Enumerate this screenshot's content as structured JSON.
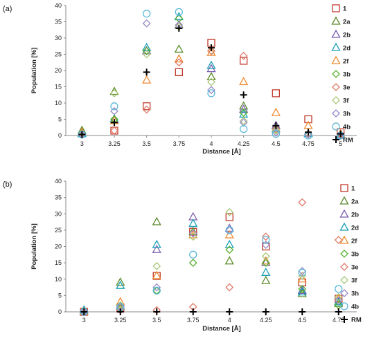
{
  "chart_data": [
    {
      "type": "scatter",
      "panel_label": "(a)",
      "title": "",
      "xlabel": "Distance [Å]",
      "ylabel": "Population [%]",
      "categories": [
        "3",
        "3.25",
        "3.5",
        "3.75",
        "4",
        "4.25",
        "4.5",
        "4.75",
        "5"
      ],
      "ylim": [
        0,
        40
      ],
      "yticks": [
        "0",
        "5",
        "10",
        "15",
        "20",
        "25",
        "30",
        "35",
        "40"
      ],
      "grid": false,
      "legend_position": "right",
      "series": [
        {
          "name": "1",
          "marker": "square",
          "color": "#c0392b",
          "values": [
            null,
            1.5,
            9,
            19.5,
            28.5,
            23,
            13,
            5,
            1
          ]
        },
        {
          "name": "2a",
          "marker": "triangle",
          "color": "#5a8a2a",
          "values": [
            1.5,
            13.5,
            26,
            26.5,
            18,
            9,
            3,
            0.5,
            0
          ]
        },
        {
          "name": "2b",
          "marker": "triangle",
          "color": "#7a5fb0",
          "values": [
            0.5,
            5,
            26,
            34,
            20.5,
            8,
            3,
            0.5,
            0
          ]
        },
        {
          "name": "2d",
          "marker": "triangle",
          "color": "#1a9fb5",
          "values": [
            0.5,
            5,
            27,
            36.5,
            21.5,
            6.5,
            2,
            0.5,
            0
          ]
        },
        {
          "name": "2f",
          "marker": "triangle",
          "color": "#f08a30",
          "values": [
            1,
            4.5,
            17,
            23.5,
            25.5,
            16.5,
            7,
            3,
            0.5
          ]
        },
        {
          "name": "3b",
          "marker": "diamond",
          "color": "#55b02a",
          "values": [
            0.5,
            5,
            26,
            36,
            26,
            7,
            2,
            0.5,
            0
          ]
        },
        {
          "name": "3e",
          "marker": "diamond",
          "color": "#e07868",
          "values": [
            0.3,
            1.5,
            8,
            22.5,
            26,
            24.5,
            2,
            0.5,
            0
          ]
        },
        {
          "name": "3f",
          "marker": "diamond",
          "color": "#a8c878",
          "values": [
            0.5,
            13,
            25,
            33.5,
            16.5,
            4.5,
            1.5,
            0.3,
            0
          ]
        },
        {
          "name": "3h",
          "marker": "diamond",
          "color": "#9a88c8",
          "values": [
            0.3,
            7.5,
            34.5,
            34,
            14,
            4,
            1,
            0.3,
            0
          ]
        },
        {
          "name": "4b",
          "marker": "circle",
          "color": "#58b8d8",
          "values": [
            0.3,
            9,
            37.5,
            38,
            13,
            2,
            0.5,
            0,
            0
          ]
        },
        {
          "name": "RM",
          "marker": "plus",
          "color": "#000000",
          "values": [
            0.3,
            4,
            19.5,
            33,
            27,
            12.5,
            3,
            1,
            0.5
          ]
        }
      ]
    },
    {
      "type": "scatter",
      "panel_label": "(b)",
      "title": "",
      "xlabel": "Distance [Å]",
      "ylabel": "Population [%]",
      "categories": [
        "3",
        "3.25",
        "3.5",
        "3.75",
        "4",
        "4.25",
        "4.5",
        "4.75"
      ],
      "ylim": [
        0,
        40
      ],
      "yticks": [
        "0",
        "5",
        "10",
        "15",
        "20",
        "25",
        "30",
        "35",
        "40"
      ],
      "grid": false,
      "legend_position": "right",
      "series": [
        {
          "name": "1",
          "marker": "square",
          "color": "#c0392b",
          "values": [
            0,
            1,
            11,
            24.5,
            29,
            20,
            9,
            4
          ]
        },
        {
          "name": "2a",
          "marker": "triangle",
          "color": "#5a8a2a",
          "values": [
            0,
            9,
            27.5,
            24.5,
            15.5,
            9.5,
            5.5,
            2.5
          ]
        },
        {
          "name": "2b",
          "marker": "triangle",
          "color": "#7a5fb0",
          "values": [
            0,
            1.5,
            19,
            29,
            25.5,
            15,
            6.5,
            3
          ]
        },
        {
          "name": "2d",
          "marker": "triangle",
          "color": "#1a9fb5",
          "values": [
            0.5,
            8,
            20.5,
            27,
            20.5,
            12,
            6,
            3
          ]
        },
        {
          "name": "2f",
          "marker": "triangle",
          "color": "#f08a30",
          "values": [
            0,
            3,
            11,
            23.5,
            23.5,
            15.5,
            10,
            4
          ]
        },
        {
          "name": "3b",
          "marker": "diamond",
          "color": "#55b02a",
          "values": [
            0,
            1,
            6.5,
            15,
            19,
            15,
            7,
            2
          ]
        },
        {
          "name": "3e",
          "marker": "diamond",
          "color": "#e07868",
          "values": [
            0,
            0.5,
            0.5,
            1.5,
            7.5,
            23,
            33.5,
            22
          ]
        },
        {
          "name": "3f",
          "marker": "diamond",
          "color": "#a8c878",
          "values": [
            0,
            2,
            14,
            23,
            30.5,
            17,
            11,
            4.5
          ]
        },
        {
          "name": "3h",
          "marker": "diamond",
          "color": "#9a88c8",
          "values": [
            0,
            1.5,
            7.5,
            24,
            25,
            20.5,
            12.5,
            3.5
          ]
        },
        {
          "name": "4b",
          "marker": "circle",
          "color": "#58b8d8",
          "values": [
            0,
            1.5,
            6.5,
            17.5,
            25,
            22,
            12,
            7
          ]
        },
        {
          "name": "RM",
          "marker": "plus",
          "color": "#000000",
          "values": [
            0,
            0,
            0,
            0,
            0,
            0,
            0,
            0
          ]
        }
      ]
    }
  ]
}
